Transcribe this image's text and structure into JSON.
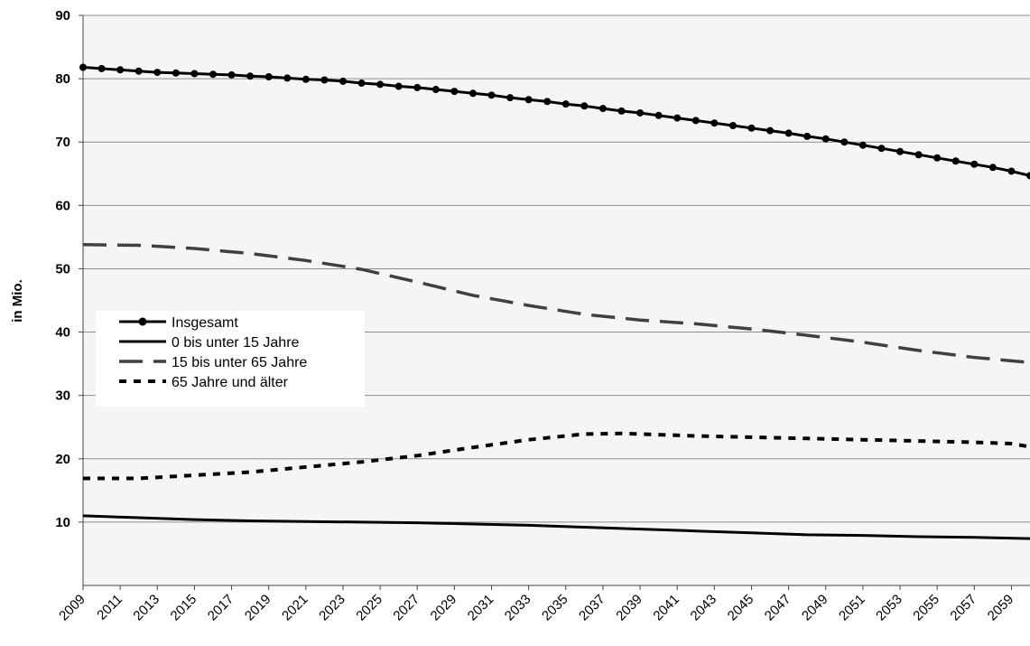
{
  "chart_data": {
    "type": "line",
    "title": "",
    "xlabel": "",
    "ylabel": "in Mio.",
    "xlim": [
      2009,
      2060
    ],
    "ylim": [
      0,
      90
    ],
    "y_ticks": [
      10,
      20,
      30,
      40,
      50,
      60,
      70,
      80,
      90
    ],
    "x_tick_labels": [
      "2009",
      "2011",
      "2013",
      "2015",
      "2017",
      "2019",
      "2021",
      "2023",
      "2025",
      "2027",
      "2029",
      "2031",
      "2033",
      "2035",
      "2037",
      "2039",
      "2041",
      "2043",
      "2045",
      "2047",
      "2049",
      "2051",
      "2053",
      "2055",
      "2057",
      "2059"
    ],
    "grid": "horizontal",
    "legend_position": "left-center",
    "plot_background": "#f5f5f5",
    "series": [
      {
        "name": "Insgesamt",
        "style": "solid-markers",
        "color": "#000000",
        "x": [
          2009,
          2010,
          2011,
          2012,
          2013,
          2014,
          2015,
          2016,
          2017,
          2018,
          2019,
          2020,
          2021,
          2022,
          2023,
          2024,
          2025,
          2026,
          2027,
          2028,
          2029,
          2030,
          2031,
          2032,
          2033,
          2034,
          2035,
          2036,
          2037,
          2038,
          2039,
          2040,
          2041,
          2042,
          2043,
          2044,
          2045,
          2046,
          2047,
          2048,
          2049,
          2050,
          2051,
          2052,
          2053,
          2054,
          2055,
          2056,
          2057,
          2058,
          2059,
          2060
        ],
        "values": [
          81.8,
          81.6,
          81.4,
          81.2,
          81.0,
          80.9,
          80.8,
          80.7,
          80.6,
          80.4,
          80.3,
          80.1,
          79.9,
          79.8,
          79.6,
          79.3,
          79.1,
          78.8,
          78.6,
          78.3,
          78.0,
          77.7,
          77.4,
          77.0,
          76.7,
          76.4,
          76.0,
          75.7,
          75.3,
          74.9,
          74.6,
          74.2,
          73.8,
          73.4,
          73.0,
          72.6,
          72.2,
          71.8,
          71.4,
          70.9,
          70.5,
          70.0,
          69.5,
          69.0,
          68.5,
          68.0,
          67.5,
          67.0,
          66.5,
          66.0,
          65.4,
          64.7
        ]
      },
      {
        "name": "0 bis unter 15 Jahre",
        "style": "solid",
        "color": "#000000",
        "x": [
          2009,
          2012,
          2015,
          2018,
          2021,
          2024,
          2027,
          2030,
          2033,
          2036,
          2039,
          2042,
          2045,
          2048,
          2051,
          2054,
          2057,
          2060
        ],
        "values": [
          11.0,
          10.7,
          10.4,
          10.2,
          10.1,
          10.0,
          9.9,
          9.7,
          9.5,
          9.2,
          8.9,
          8.6,
          8.3,
          8.0,
          7.9,
          7.7,
          7.6,
          7.4
        ]
      },
      {
        "name": "15 bis unter 65 Jahre",
        "style": "long-dash",
        "color": "#404040",
        "x": [
          2009,
          2012,
          2015,
          2018,
          2021,
          2024,
          2027,
          2030,
          2033,
          2036,
          2039,
          2042,
          2045,
          2048,
          2051,
          2054,
          2057,
          2060
        ],
        "values": [
          53.8,
          53.7,
          53.2,
          52.4,
          51.3,
          49.9,
          47.9,
          45.8,
          44.2,
          42.8,
          41.9,
          41.3,
          40.5,
          39.5,
          38.4,
          37.1,
          36.0,
          35.2
        ]
      },
      {
        "name": "65 Jahre und älter",
        "style": "short-dash",
        "color": "#000000",
        "x": [
          2009,
          2012,
          2015,
          2018,
          2021,
          2024,
          2027,
          2030,
          2033,
          2036,
          2038,
          2040,
          2042,
          2045,
          2048,
          2051,
          2054,
          2057,
          2059,
          2060
        ],
        "values": [
          16.9,
          16.9,
          17.4,
          17.9,
          18.7,
          19.5,
          20.5,
          21.8,
          23.0,
          23.9,
          24.0,
          23.8,
          23.6,
          23.4,
          23.2,
          23.0,
          22.8,
          22.6,
          22.4,
          21.9
        ]
      }
    ]
  }
}
